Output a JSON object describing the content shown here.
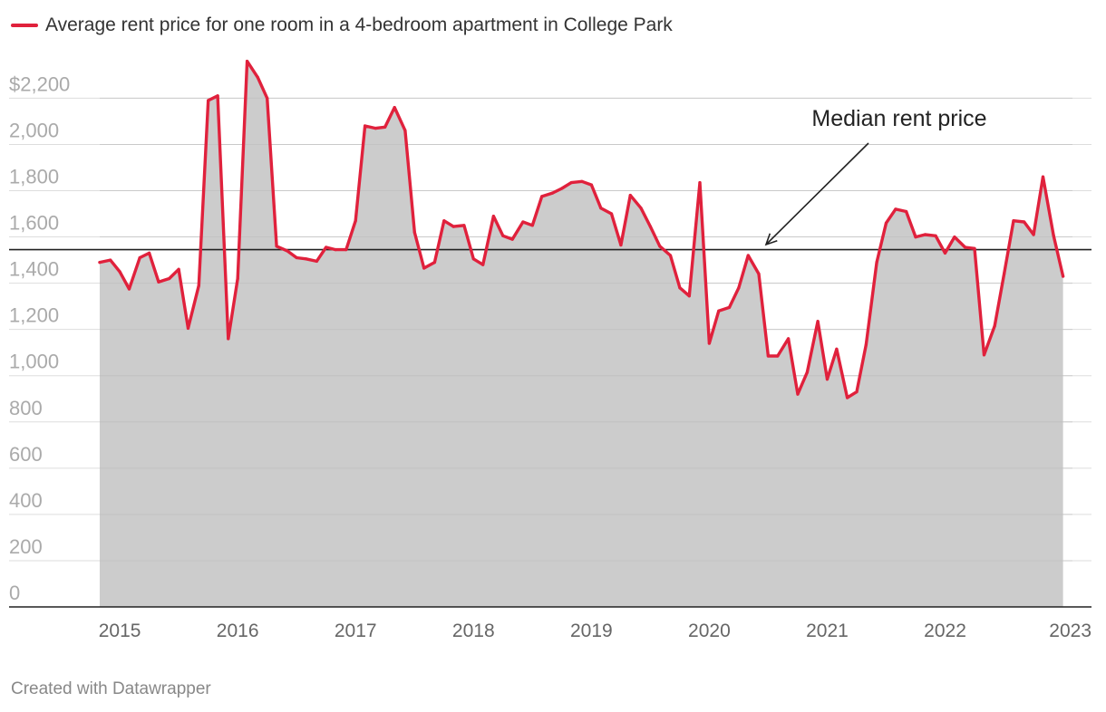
{
  "chart_data": {
    "type": "area",
    "title": "",
    "legend": [
      {
        "label": "Average rent price for one room in a 4-bedroom apartment in College Park",
        "color": "#e0213c"
      }
    ],
    "y_ticks": [
      {
        "value": 2200,
        "label": "$2,200"
      },
      {
        "value": 2000,
        "label": "2,000"
      },
      {
        "value": 1800,
        "label": "1,800"
      },
      {
        "value": 1600,
        "label": "1,600"
      },
      {
        "value": 1400,
        "label": "1,400"
      },
      {
        "value": 1200,
        "label": "1,200"
      },
      {
        "value": 1000,
        "label": "1,000"
      },
      {
        "value": 800,
        "label": "800"
      },
      {
        "value": 600,
        "label": "600"
      },
      {
        "value": 400,
        "label": "400"
      },
      {
        "value": 200,
        "label": "200"
      },
      {
        "value": 0,
        "label": "0"
      }
    ],
    "x_ticks": [
      {
        "value": 2015,
        "label": "2015"
      },
      {
        "value": 2016,
        "label": "2016"
      },
      {
        "value": 2017,
        "label": "2017"
      },
      {
        "value": 2018,
        "label": "2018"
      },
      {
        "value": 2019,
        "label": "2019"
      },
      {
        "value": 2020,
        "label": "2020"
      },
      {
        "value": 2021,
        "label": "2021"
      },
      {
        "value": 2022,
        "label": "2022"
      },
      {
        "value": 2023,
        "label": "2023"
      }
    ],
    "xlim": [
      2014.83,
      2023.08
    ],
    "ylim": [
      0,
      2370
    ],
    "median": {
      "value": 1545,
      "label": "Median rent price"
    },
    "series": [
      {
        "name": "Average rent price for one room in a 4-bedroom apartment in College Park",
        "color": "#e0213c",
        "points": [
          [
            2014.83,
            1490
          ],
          [
            2014.92,
            1500
          ],
          [
            2015.0,
            1450
          ],
          [
            2015.08,
            1375
          ],
          [
            2015.17,
            1510
          ],
          [
            2015.25,
            1530
          ],
          [
            2015.33,
            1405
          ],
          [
            2015.42,
            1420
          ],
          [
            2015.5,
            1460
          ],
          [
            2015.58,
            1205
          ],
          [
            2015.67,
            1390
          ],
          [
            2015.75,
            2190
          ],
          [
            2015.83,
            2210
          ],
          [
            2015.92,
            1160
          ],
          [
            2016.0,
            1420
          ],
          [
            2016.08,
            2360
          ],
          [
            2016.17,
            2290
          ],
          [
            2016.25,
            2200
          ],
          [
            2016.33,
            1560
          ],
          [
            2016.42,
            1540
          ],
          [
            2016.5,
            1510
          ],
          [
            2016.58,
            1505
          ],
          [
            2016.67,
            1495
          ],
          [
            2016.75,
            1555
          ],
          [
            2016.83,
            1545
          ],
          [
            2016.92,
            1545
          ],
          [
            2017.0,
            1670
          ],
          [
            2017.08,
            2080
          ],
          [
            2017.17,
            2070
          ],
          [
            2017.25,
            2075
          ],
          [
            2017.33,
            2160
          ],
          [
            2017.42,
            2060
          ],
          [
            2017.5,
            1620
          ],
          [
            2017.58,
            1465
          ],
          [
            2017.67,
            1490
          ],
          [
            2017.75,
            1670
          ],
          [
            2017.83,
            1645
          ],
          [
            2017.92,
            1650
          ],
          [
            2018.0,
            1505
          ],
          [
            2018.08,
            1480
          ],
          [
            2018.17,
            1690
          ],
          [
            2018.25,
            1605
          ],
          [
            2018.33,
            1590
          ],
          [
            2018.42,
            1665
          ],
          [
            2018.5,
            1650
          ],
          [
            2018.58,
            1775
          ],
          [
            2018.67,
            1790
          ],
          [
            2018.75,
            1810
          ],
          [
            2018.83,
            1835
          ],
          [
            2018.92,
            1840
          ],
          [
            2019.0,
            1825
          ],
          [
            2019.08,
            1725
          ],
          [
            2019.17,
            1700
          ],
          [
            2019.25,
            1565
          ],
          [
            2019.33,
            1780
          ],
          [
            2019.42,
            1725
          ],
          [
            2019.5,
            1645
          ],
          [
            2019.58,
            1560
          ],
          [
            2019.67,
            1520
          ],
          [
            2019.75,
            1380
          ],
          [
            2019.83,
            1345
          ],
          [
            2019.92,
            1835
          ],
          [
            2020.0,
            1140
          ],
          [
            2020.08,
            1280
          ],
          [
            2020.17,
            1295
          ],
          [
            2020.25,
            1380
          ],
          [
            2020.33,
            1520
          ],
          [
            2020.42,
            1440
          ],
          [
            2020.5,
            1085
          ],
          [
            2020.58,
            1085
          ],
          [
            2020.67,
            1160
          ],
          [
            2020.75,
            920
          ],
          [
            2020.83,
            1015
          ],
          [
            2020.92,
            1235
          ],
          [
            2021.0,
            985
          ],
          [
            2021.08,
            1115
          ],
          [
            2021.17,
            905
          ],
          [
            2021.25,
            930
          ],
          [
            2021.33,
            1135
          ],
          [
            2021.42,
            1490
          ],
          [
            2021.5,
            1660
          ],
          [
            2021.58,
            1720
          ],
          [
            2021.67,
            1710
          ],
          [
            2021.75,
            1600
          ],
          [
            2021.83,
            1610
          ],
          [
            2021.92,
            1605
          ],
          [
            2022.0,
            1530
          ],
          [
            2022.08,
            1600
          ],
          [
            2022.17,
            1555
          ],
          [
            2022.25,
            1550
          ],
          [
            2022.33,
            1090
          ],
          [
            2022.42,
            1215
          ],
          [
            2022.5,
            1440
          ],
          [
            2022.58,
            1670
          ],
          [
            2022.67,
            1665
          ],
          [
            2022.75,
            1610
          ],
          [
            2022.83,
            1860
          ],
          [
            2022.92,
            1605
          ],
          [
            2023.0,
            1430
          ]
        ]
      }
    ]
  },
  "footer": {
    "credit": "Created with Datawrapper"
  }
}
